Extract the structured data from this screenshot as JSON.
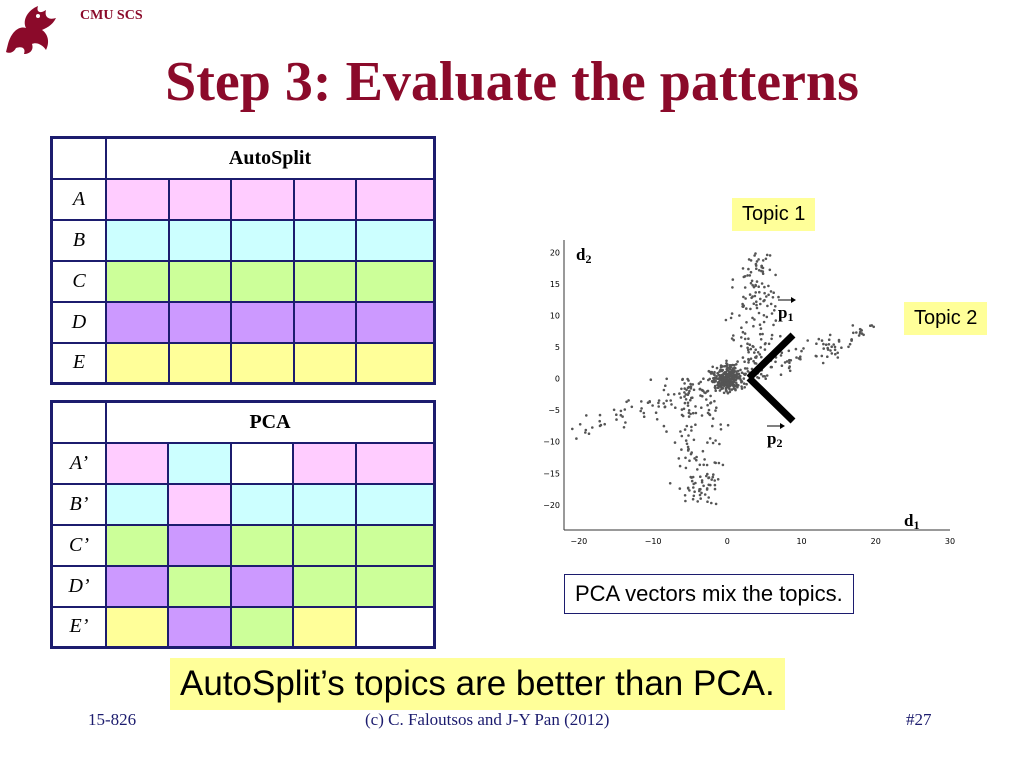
{
  "header": {
    "org": "CMU SCS",
    "title": "Step 3: Evaluate the patterns"
  },
  "autosplit": {
    "header": "AutoSplit",
    "rows": [
      {
        "label": "A",
        "cells": [
          "pink",
          "pink",
          "pink",
          "pink",
          "pink"
        ]
      },
      {
        "label": "B",
        "cells": [
          "cyan",
          "cyan",
          "cyan",
          "cyan",
          "cyan"
        ]
      },
      {
        "label": "C",
        "cells": [
          "green",
          "green",
          "green",
          "green",
          "green"
        ]
      },
      {
        "label": "D",
        "cells": [
          "purple",
          "purple",
          "purple",
          "purple",
          "purple"
        ]
      },
      {
        "label": "E",
        "cells": [
          "yellow",
          "yellow",
          "yellow",
          "yellow",
          "yellow"
        ]
      }
    ]
  },
  "pca": {
    "header": "PCA",
    "rows": [
      {
        "label": "A’",
        "cells": [
          "pink",
          "cyan",
          "white",
          "pink",
          "pink"
        ]
      },
      {
        "label": "B’",
        "cells": [
          "cyan",
          "pink",
          "cyan",
          "cyan",
          "cyan"
        ]
      },
      {
        "label": "C’",
        "cells": [
          "green",
          "purple",
          "green",
          "green",
          "green"
        ]
      },
      {
        "label": "D’",
        "cells": [
          "purple",
          "green",
          "purple",
          "green",
          "green"
        ]
      },
      {
        "label": "E’",
        "cells": [
          "yellow",
          "purple",
          "green",
          "yellow",
          "white"
        ]
      }
    ]
  },
  "colors": {
    "pink": "#ffccff",
    "cyan": "#ccffff",
    "green": "#ccff99",
    "purple": "#cc99ff",
    "yellow": "#ffff99",
    "white": "#ffffff",
    "title": "#8b0a2a",
    "border": "#1c1c6e"
  },
  "chart_data": {
    "type": "scatter",
    "xlabel": "d1",
    "ylabel": "d2",
    "xticks": [
      "−20",
      "−10",
      "0",
      "10",
      "20",
      "30"
    ],
    "yticks": [
      "20",
      "15",
      "10",
      "5",
      "0",
      "−5",
      "−10",
      "−15",
      "−20"
    ],
    "xlim": [
      -22,
      30
    ],
    "ylim": [
      -24,
      22
    ],
    "vectors": [
      {
        "label": "p1"
      },
      {
        "label": "p2"
      }
    ]
  },
  "callouts": {
    "topic1": "Topic 1",
    "topic2": "Topic 2"
  },
  "note": "PCA vectors mix the topics.",
  "conclusion": "AutoSplit’s topics are better than PCA.",
  "footer": {
    "left": "15-826",
    "center": "(c) C. Faloutsos and J-Y Pan (2012)",
    "right": "#27"
  }
}
